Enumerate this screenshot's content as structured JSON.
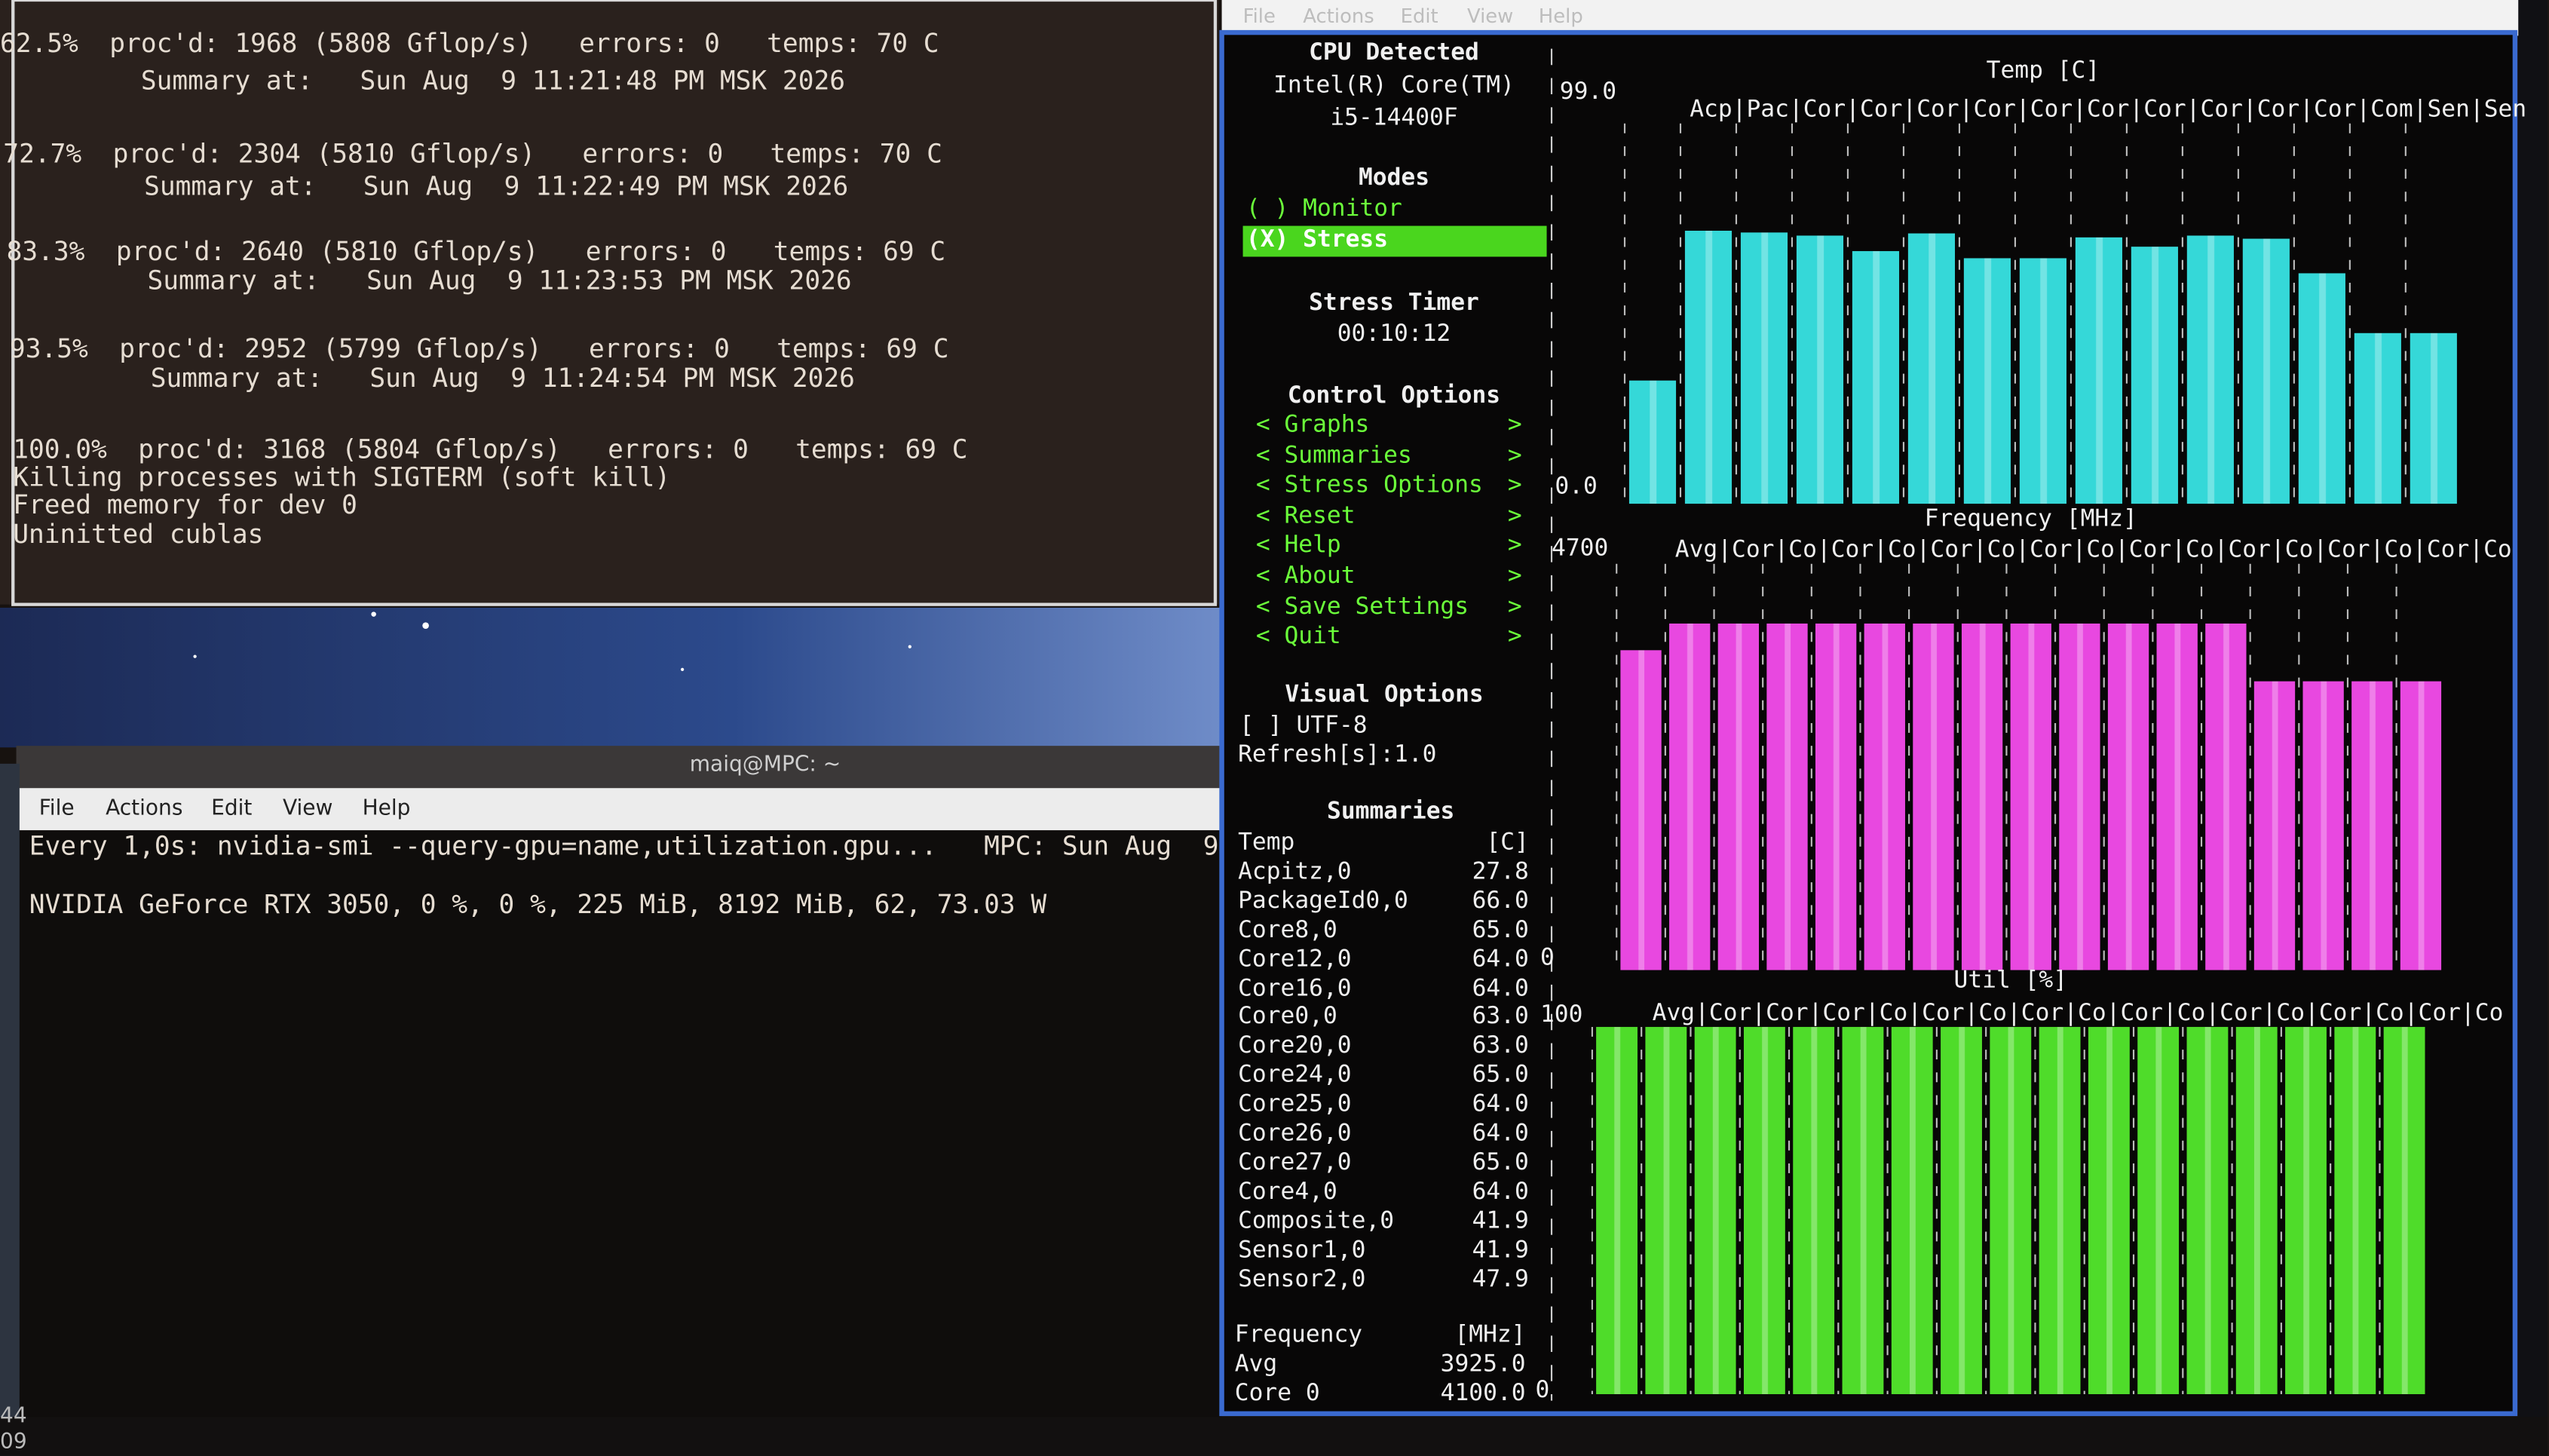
{
  "top_terminal": {
    "lines": [
      "62.5%  proc'd: 1968 (5808 Gflop/s)   errors: 0   temps: 70 C",
      "         Summary at:   Sun Aug  9 11:21:48 PM MSK 2026",
      "72.7%  proc'd: 2304 (5810 Gflop/s)   errors: 0   temps: 70 C",
      "         Summary at:   Sun Aug  9 11:22:49 PM MSK 2026",
      "83.3%  proc'd: 2640 (5810 Gflop/s)   errors: 0   temps: 69 C",
      "         Summary at:   Sun Aug  9 11:23:53 PM MSK 2026",
      "93.5%  proc'd: 2952 (5799 Gflop/s)   errors: 0   temps: 69 C",
      "         Summary at:   Sun Aug  9 11:24:54 PM MSK 2026",
      "100.0%  proc'd: 3168 (5804 Gflop/s)   errors: 0   temps: 69 C",
      "Killing processes with SIGTERM (soft kill)",
      "Freed memory for dev 0",
      "Uninitted cublas"
    ]
  },
  "bottom_terminal": {
    "title": "maiq@MPC: ~",
    "menu": [
      "File",
      "Actions",
      "Edit",
      "View",
      "Help"
    ],
    "lines": [
      "Every 1,0s: nvidia-smi --query-gpu=name,utilization.gpu...   MPC: Sun Aug  9",
      "NVIDIA GeForce RTX 3050, 0 %, 0 %, 225 MiB, 8192 MiB, 62, 73.03 W"
    ]
  },
  "stui": {
    "menu": [
      "File",
      "Actions",
      "Edit",
      "View",
      "Help"
    ],
    "sidebar": {
      "cpu_heading": "CPU Detected",
      "cpu_name": [
        "Intel(R) Core(TM)",
        "i5-14400F"
      ],
      "modes_heading": "Modes",
      "modes": [
        "( ) Monitor",
        "(X) Stress"
      ],
      "timer_heading": "Stress Timer",
      "timer": "00:10:12",
      "control_heading": "Control Options",
      "controls": [
        "< Graphs",
        "< Summaries",
        "< Stress Options",
        "< Reset",
        "< Help",
        "< About",
        "< Save Settings",
        "< Quit"
      ],
      "control_arrow": ">",
      "visual_heading": "Visual Options",
      "visual": [
        "[ ] UTF-8",
        "Refresh[s]:1.0"
      ],
      "summaries_heading": "Summaries",
      "summary_rows": [
        [
          "Temp",
          "[C]"
        ],
        [
          "Acpitz,0",
          "27.8"
        ],
        [
          "PackageId0,0",
          "66.0"
        ],
        [
          "Core8,0",
          "65.0"
        ],
        [
          "Core12,0",
          "64.0"
        ],
        [
          "Core16,0",
          "64.0"
        ],
        [
          "Core0,0",
          "63.0"
        ],
        [
          "Core20,0",
          "63.0"
        ],
        [
          "Core24,0",
          "65.0"
        ],
        [
          "Core25,0",
          "64.0"
        ],
        [
          "Core26,0",
          "64.0"
        ],
        [
          "Core27,0",
          "65.0"
        ],
        [
          "Core4,0",
          "64.0"
        ],
        [
          "Composite,0",
          "41.9"
        ],
        [
          "Sensor1,0",
          "41.9"
        ],
        [
          "Sensor2,0",
          "47.9"
        ]
      ],
      "frequency_rows": [
        [
          "Frequency",
          "[MHz]"
        ],
        [
          "Avg",
          "3925.0"
        ],
        [
          "Core 0",
          "4100.0"
        ]
      ]
    },
    "graphs": [
      {
        "title": "Temp [C]",
        "columns": "Acp|Pac|Cor|Cor|Cor|Cor|Cor|Cor|Cor|Cor|Cor|Cor|Com|Sen|Sen",
        "color": "#35d8d8",
        "ylim": [
          0,
          99
        ],
        "yticks": [
          {
            "value": 0,
            "label": "0.0"
          },
          {
            "value": 99,
            "label": "99.0"
          }
        ],
        "values": [
          27.8,
          61.6,
          61.2,
          60.5,
          57,
          61,
          55.4,
          55.4,
          60.1,
          58,
          60.5,
          59.8,
          52,
          38.5,
          38.5
        ]
      },
      {
        "title": "Frequency [MHz]",
        "columns": "Avg|Cor|Co|Cor|Co|Cor|Co|Cor|Co|Cor|Co|Cor|Co|Cor|Co|Cor|Co",
        "color": "#e848e0",
        "ylim": [
          0,
          4700
        ],
        "yticks": [
          0,
          4700
        ],
        "values": [
          3600,
          3900,
          3900,
          3900,
          3900,
          3900,
          3900,
          3900,
          3900,
          3900,
          3900,
          3900,
          3900,
          3250,
          3250,
          3250,
          3250
        ]
      },
      {
        "title": "Util [%]",
        "columns": "Avg|Cor|Cor|Cor|Co|Cor|Co|Cor|Co|Cor|Co|Cor|Co|Cor|Co|Cor|Co",
        "color": "#4fdc2a",
        "ylim": [
          0,
          100
        ],
        "yticks": [
          0,
          100
        ],
        "values": [
          97,
          97,
          97,
          97,
          97,
          97,
          97,
          97,
          97,
          97,
          97,
          97,
          97,
          97,
          97,
          97,
          97
        ]
      }
    ]
  },
  "taskbar": [
    "44",
    "09"
  ]
}
